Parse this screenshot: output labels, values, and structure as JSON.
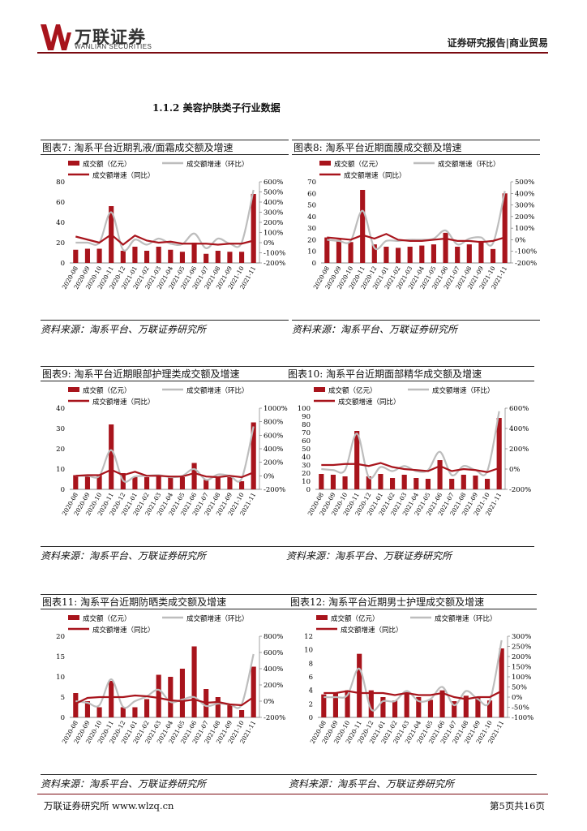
{
  "header": {
    "logo_cn": "万联证券",
    "logo_en": "WANLIAN SECURITIES",
    "right": "证券研究报告|商业贸易"
  },
  "section_title": "1.1.2 美容护肤类子行业数据",
  "colors": {
    "bar": "#a8141c",
    "yoy": "#a8141c",
    "mom": "#bdbdbd",
    "brand": "#7a0a10"
  },
  "legend": {
    "bar": "成交额（亿元）",
    "mom": "成交额增速（环比）",
    "yoy": "成交额增速（同比）"
  },
  "months": [
    "2020-08",
    "2020-09",
    "2020-10",
    "2020-11",
    "2020-12",
    "2021-01",
    "2021-02",
    "2021-03",
    "2021-04",
    "2021-05",
    "2021-06",
    "2021-07",
    "2021-08",
    "2021-09",
    "2021-10",
    "2021-11"
  ],
  "source": "资料来源：淘系平台、万联证券研究所",
  "charts": [
    {
      "id": "fig7",
      "title": "图表7:  淘系平台近期乳液/面霜成交额及增速",
      "left_ticks": [
        "80",
        "60",
        "40",
        "20",
        "0"
      ],
      "left_max": 80,
      "right_ticks": [
        "600%",
        "500%",
        "400%",
        "300%",
        "200%",
        "100%",
        "0%",
        "-100%",
        "-200%"
      ],
      "right_min": -200,
      "right_max": 600,
      "bars": [
        13,
        14,
        14,
        56,
        12,
        16,
        12,
        16,
        13,
        11,
        20,
        9,
        12,
        11,
        11,
        68
      ],
      "yoy": [
        60,
        30,
        0,
        80,
        -20,
        70,
        20,
        0,
        10,
        -10,
        -10,
        -10,
        -20,
        -10,
        -10,
        20
      ],
      "mom": [
        0,
        0,
        0,
        300,
        -70,
        30,
        -20,
        40,
        -10,
        -15,
        90,
        -55,
        40,
        -10,
        0,
        520
      ]
    },
    {
      "id": "fig8",
      "title": "图表8:  淘系平台近期面膜成交额及增速",
      "left_ticks": [
        "70",
        "60",
        "50",
        "40",
        "30",
        "20",
        "10",
        "0"
      ],
      "left_max": 70,
      "right_ticks": [
        "500%",
        "400%",
        "300%",
        "200%",
        "100%",
        "0%",
        "-100%",
        "-200%"
      ],
      "right_min": -200,
      "right_max": 500,
      "bars": [
        22,
        20,
        18,
        63,
        16,
        14,
        13,
        14,
        15,
        16,
        26,
        14,
        16,
        19,
        12,
        60
      ],
      "yoy": [
        20,
        10,
        0,
        40,
        10,
        50,
        0,
        -10,
        -10,
        0,
        10,
        -10,
        -10,
        -20,
        -10,
        20
      ],
      "mom": [
        0,
        -10,
        -10,
        250,
        -70,
        -10,
        -10,
        0,
        0,
        10,
        80,
        -40,
        10,
        20,
        -30,
        420
      ]
    },
    {
      "id": "fig9",
      "title": "图表9:  淘系平台近期眼部护理类成交额及增速",
      "left_ticks": [
        "40",
        "30",
        "20",
        "10",
        "0"
      ],
      "left_max": 40,
      "right_ticks": [
        "1000%",
        "800%",
        "600%",
        "400%",
        "200%",
        "0%",
        "-200%"
      ],
      "right_min": -200,
      "right_max": 1000,
      "bars": [
        7,
        7,
        7,
        32,
        8,
        6,
        6,
        7,
        6,
        6,
        13,
        5,
        6,
        6,
        4,
        33
      ],
      "yoy": [
        0,
        10,
        10,
        90,
        10,
        60,
        0,
        0,
        -10,
        -10,
        40,
        -10,
        -20,
        0,
        -20,
        50
      ],
      "mom": [
        0,
        0,
        0,
        380,
        -70,
        -10,
        0,
        10,
        -20,
        0,
        100,
        -60,
        20,
        0,
        -40,
        730
      ]
    },
    {
      "id": "fig10",
      "title": "图表10:  淘系平台近期面部精华成交额及增速",
      "left_ticks": [
        "100",
        "90",
        "80",
        "70",
        "60",
        "50",
        "40",
        "30",
        "20",
        "10",
        "0"
      ],
      "left_max": 100,
      "right_ticks": [
        "600%",
        "400%",
        "200%",
        "0%",
        "-200%"
      ],
      "right_min": -200,
      "right_max": 600,
      "bars": [
        19,
        18,
        16,
        72,
        16,
        19,
        14,
        18,
        14,
        13,
        36,
        13,
        18,
        17,
        13,
        88
      ],
      "yoy": [
        40,
        40,
        50,
        50,
        30,
        60,
        20,
        0,
        -10,
        -20,
        30,
        -20,
        0,
        -10,
        -30,
        10
      ],
      "mom": [
        0,
        -10,
        -10,
        350,
        -80,
        20,
        -20,
        30,
        -20,
        -10,
        170,
        -60,
        30,
        -10,
        -20,
        570
      ]
    },
    {
      "id": "fig11",
      "title": "图表11:  淘系平台近期防晒类成交额及增速",
      "left_ticks": [
        "20",
        "15",
        "10",
        "5",
        "0"
      ],
      "left_max": 20,
      "right_ticks": [
        "800%",
        "600%",
        "400%",
        "200%",
        "0%",
        "-200%"
      ],
      "right_min": -200,
      "right_max": 800,
      "bars": [
        6,
        4,
        2.5,
        9,
        2.5,
        2.5,
        4.5,
        10.5,
        10,
        12,
        17.5,
        7,
        5,
        3,
        1.8,
        12.5
      ],
      "yoy": [
        -30,
        40,
        50,
        50,
        50,
        70,
        60,
        40,
        10,
        0,
        20,
        -20,
        -10,
        -40,
        -50,
        50
      ],
      "mom": [
        0,
        -20,
        -50,
        270,
        -70,
        0,
        60,
        140,
        -10,
        20,
        50,
        -60,
        -30,
        -40,
        -40,
        580
      ]
    },
    {
      "id": "fig12",
      "title": "图表12:  淘系平台近期男士护理成交额及增速",
      "left_ticks": [
        "12",
        "10",
        "8",
        "6",
        "4",
        "2",
        "0"
      ],
      "left_max": 12,
      "right_ticks": [
        "300%",
        "250%",
        "200%",
        "150%",
        "100%",
        "50%",
        "0%",
        "-50%",
        "-100%"
      ],
      "right_min": -100,
      "right_max": 300,
      "bars": [
        3.4,
        3.6,
        4,
        9.4,
        4,
        3,
        2.5,
        3.5,
        3,
        2.6,
        4,
        2.4,
        3.2,
        3,
        2.5,
        10.2
      ],
      "yoy": [
        20,
        20,
        30,
        20,
        20,
        20,
        10,
        20,
        10,
        10,
        20,
        0,
        -10,
        0,
        0,
        30
      ],
      "mom": [
        0,
        0,
        10,
        140,
        -60,
        -20,
        -20,
        30,
        -20,
        -10,
        50,
        -40,
        30,
        -10,
        -20,
        280
      ]
    }
  ],
  "footer": {
    "left": "万联证券研究所  www.wlzq.cn",
    "right": "第5页共16页"
  }
}
